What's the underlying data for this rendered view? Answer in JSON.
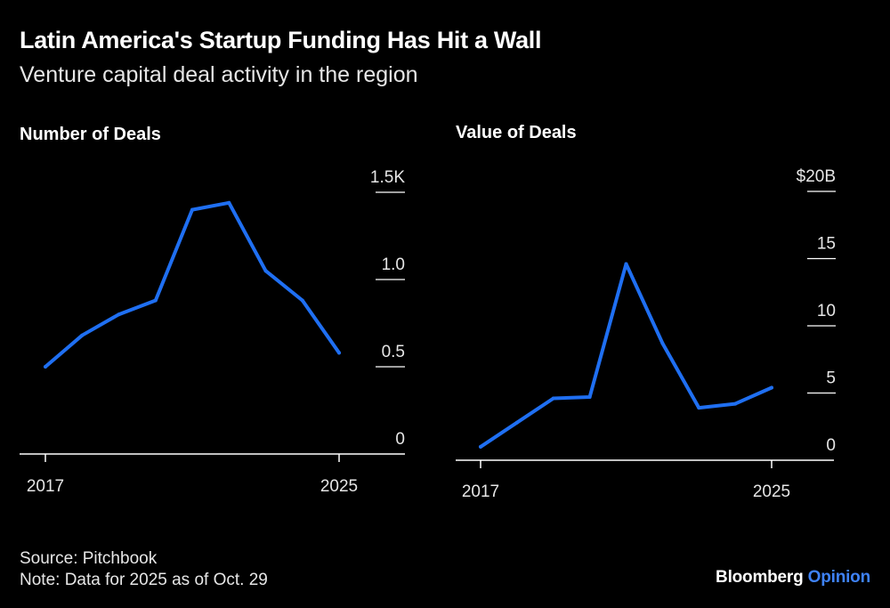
{
  "header": {
    "title": "Latin America's Startup Funding Has Hit a Wall",
    "subtitle": "Venture capital deal activity in the region"
  },
  "footer": {
    "source": "Source: Pitchbook",
    "note": "Note: Data for 2025 as of Oct. 29",
    "brand": "Bloomberg",
    "brand_suffix": "Opinion"
  },
  "colors": {
    "line": "#1f6ff2",
    "background": "#000000",
    "text": "#ffffff",
    "brand_accent": "#3e82f7"
  },
  "chart_data": [
    {
      "type": "line",
      "title": "Number of Deals",
      "x": [
        2017,
        2018,
        2019,
        2020,
        2021,
        2022,
        2023,
        2024,
        2025
      ],
      "x_tick_labels": [
        "2017",
        "2025"
      ],
      "series": [
        {
          "name": "Number of Deals",
          "values": [
            0.5,
            0.68,
            0.8,
            0.88,
            1.4,
            1.44,
            1.05,
            0.88,
            0.58
          ]
        }
      ],
      "y_ticks": [
        {
          "value": 0,
          "label": "0"
        },
        {
          "value": 0.5,
          "label": "0.5"
        },
        {
          "value": 1.0,
          "label": "1.0"
        },
        {
          "value": 1.5,
          "label": "1.5K"
        }
      ],
      "ylim": [
        0,
        1.5
      ],
      "xlabel": "",
      "ylabel": "",
      "unit": "thousands of deals"
    },
    {
      "type": "line",
      "title": "Value of Deals",
      "x": [
        2017,
        2018,
        2019,
        2020,
        2021,
        2022,
        2023,
        2024,
        2025
      ],
      "x_tick_labels": [
        "2017",
        "2025"
      ],
      "series": [
        {
          "name": "Value of Deals",
          "values": [
            1.0,
            2.8,
            4.6,
            4.7,
            14.6,
            8.7,
            3.9,
            4.2,
            5.4
          ]
        }
      ],
      "y_ticks": [
        {
          "value": 0,
          "label": "0"
        },
        {
          "value": 5,
          "label": "5"
        },
        {
          "value": 10,
          "label": "10"
        },
        {
          "value": 15,
          "label": "15"
        },
        {
          "value": 20,
          "label": "$20B"
        }
      ],
      "ylim": [
        0,
        20
      ],
      "xlabel": "",
      "ylabel": "",
      "unit": "billions of US dollars"
    }
  ]
}
